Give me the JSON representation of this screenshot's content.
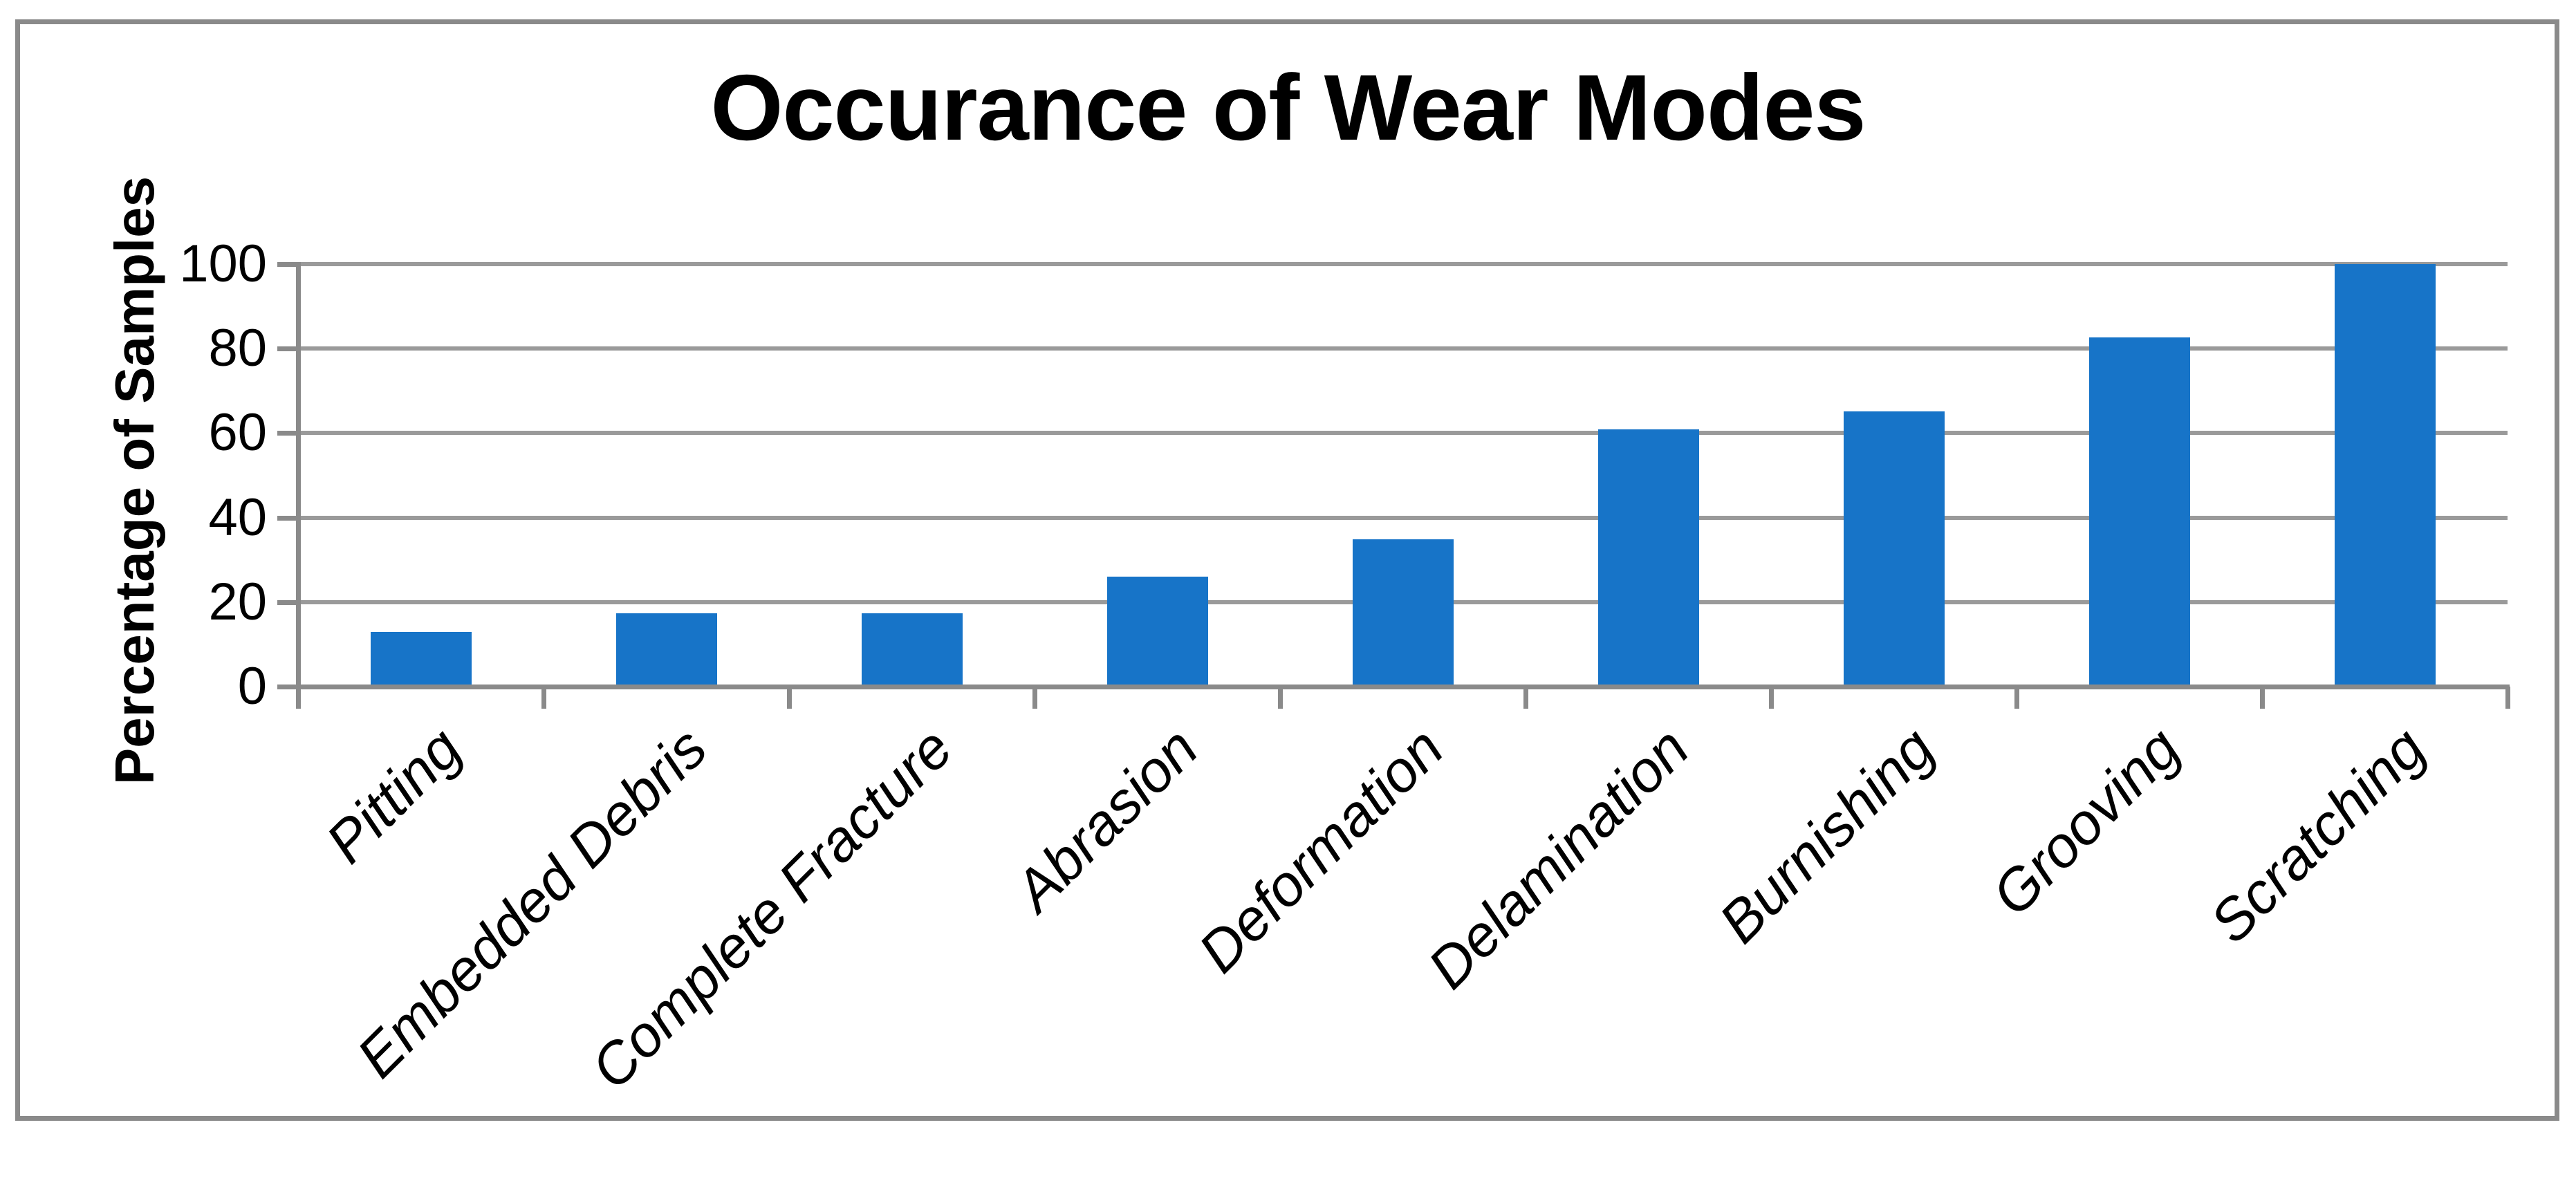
{
  "chart_data": {
    "type": "bar",
    "title": "Occurance of Wear Modes",
    "ylabel": "Percentage of Samples",
    "xlabel": "",
    "categories": [
      "Pitting",
      "Embedded Debris",
      "Complete Fracture",
      "Abrasion",
      "Deformation",
      "Delamination",
      "Burnishing",
      "Grooving",
      "Scratching"
    ],
    "values": [
      13,
      17.4,
      17.4,
      26.1,
      34.8,
      60.9,
      65.2,
      82.6,
      100
    ],
    "ylim": [
      0,
      100
    ],
    "y_ticks": [
      0,
      20,
      40,
      60,
      80,
      100
    ],
    "grid": "horizontal-only",
    "legend_position": "none",
    "colors": {
      "bar": "#1774C8",
      "gridline": "#9A9A9A",
      "axis": "#8A8A8A",
      "frame_border": "#8A8A8A",
      "text": "#000000",
      "background": "#FFFFFF"
    }
  }
}
